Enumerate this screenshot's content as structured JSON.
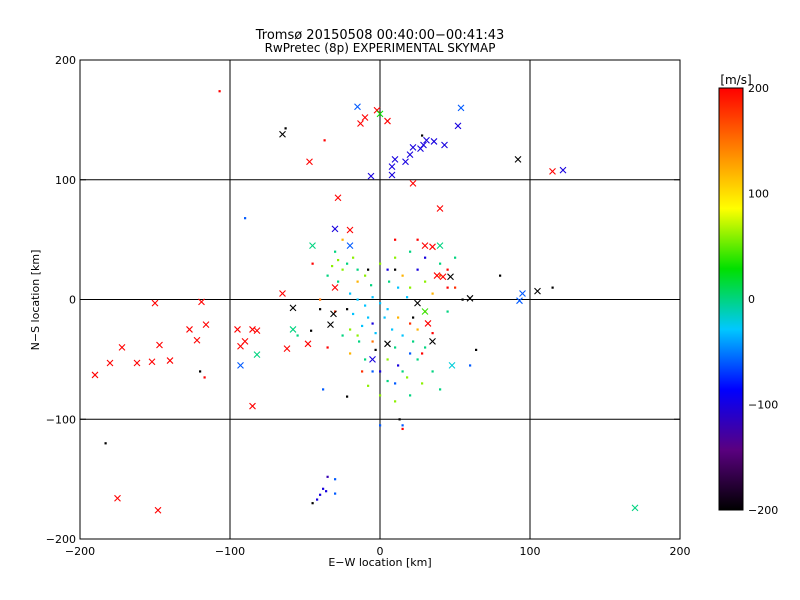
{
  "chart_data": {
    "type": "scatter",
    "title": "Tromsø 20150508 00:40:00−00:41:43",
    "subtitle": "RwPretec (8p) EXPERIMENTAL SKYMAP",
    "xlabel": "E−W location [km]",
    "ylabel": "N−S location [km]",
    "xlim": [
      -200,
      200
    ],
    "ylim": [
      -200,
      200
    ],
    "xticks": [
      -200,
      -100,
      0,
      100,
      200
    ],
    "yticks": [
      -200,
      -100,
      0,
      100,
      200
    ],
    "xticklabels": [
      "−200",
      "−100",
      "0",
      "100",
      "200"
    ],
    "yticklabels": [
      "−200",
      "−100",
      "0",
      "100",
      "200"
    ],
    "grid": true,
    "colorbar": {
      "label": "[m/s]",
      "range": [
        -200,
        200
      ],
      "ticks": [
        200,
        100,
        0,
        -100,
        -200
      ],
      "ticklabels": [
        "200",
        "100",
        "0",
        "−100",
        "−200"
      ],
      "stops": [
        "#000000",
        "#5a0080",
        "#0000ff",
        "#00c8ff",
        "#00e000",
        "#ffff00",
        "#ff8000",
        "#ff0000"
      ]
    },
    "points_x_marker": [
      {
        "x": -190,
        "y": -63,
        "v": 200
      },
      {
        "x": -180,
        "y": -53,
        "v": 200
      },
      {
        "x": -172,
        "y": -40,
        "v": 200
      },
      {
        "x": -162,
        "y": -53,
        "v": 200
      },
      {
        "x": -150,
        "y": -3,
        "v": 200
      },
      {
        "x": -152,
        "y": -52,
        "v": 200
      },
      {
        "x": -147,
        "y": -38,
        "v": 200
      },
      {
        "x": -140,
        "y": -51,
        "v": 200
      },
      {
        "x": -127,
        "y": -25,
        "v": 200
      },
      {
        "x": -122,
        "y": -34,
        "v": 200
      },
      {
        "x": -119,
        "y": -2,
        "v": 200
      },
      {
        "x": -116,
        "y": -21,
        "v": 200
      },
      {
        "x": -95,
        "y": -25,
        "v": 200
      },
      {
        "x": -93,
        "y": -39,
        "v": 200
      },
      {
        "x": -90,
        "y": -35,
        "v": 200
      },
      {
        "x": -85,
        "y": -25,
        "v": 200
      },
      {
        "x": -82,
        "y": -26,
        "v": 200
      },
      {
        "x": -85,
        "y": -89,
        "v": 200
      },
      {
        "x": -175,
        "y": -166,
        "v": 200
      },
      {
        "x": -148,
        "y": -176,
        "v": 200
      },
      {
        "x": -65,
        "y": 5,
        "v": 200
      },
      {
        "x": -62,
        "y": -41,
        "v": 200
      },
      {
        "x": -47,
        "y": 115,
        "v": 200
      },
      {
        "x": -28,
        "y": 85,
        "v": 200
      },
      {
        "x": -13,
        "y": 147,
        "v": 200
      },
      {
        "x": -10,
        "y": 152,
        "v": 200
      },
      {
        "x": -2,
        "y": 158,
        "v": 200
      },
      {
        "x": 5,
        "y": 149,
        "v": 200
      },
      {
        "x": 22,
        "y": 97,
        "v": 200
      },
      {
        "x": 40,
        "y": 76,
        "v": 200
      },
      {
        "x": 30,
        "y": 45,
        "v": 200
      },
      {
        "x": 35,
        "y": 44,
        "v": 200
      },
      {
        "x": 38,
        "y": 20,
        "v": 200
      },
      {
        "x": 42,
        "y": 19,
        "v": 200
      },
      {
        "x": 115,
        "y": 107,
        "v": 200
      },
      {
        "x": -20,
        "y": 58,
        "v": 200
      },
      {
        "x": -30,
        "y": 10,
        "v": 200
      },
      {
        "x": -48,
        "y": -37,
        "v": 200
      },
      {
        "x": 32,
        "y": -20,
        "v": 200
      },
      {
        "x": -65,
        "y": 138,
        "v": -200
      },
      {
        "x": 92,
        "y": 117,
        "v": -200
      },
      {
        "x": 105,
        "y": 7,
        "v": -200
      },
      {
        "x": 60,
        "y": 1,
        "v": -200
      },
      {
        "x": 47,
        "y": 19,
        "v": -200
      },
      {
        "x": -58,
        "y": -7,
        "v": -200
      },
      {
        "x": -33,
        "y": -21,
        "v": -200
      },
      {
        "x": -31,
        "y": -12,
        "v": -200
      },
      {
        "x": 5,
        "y": -37,
        "v": -200
      },
      {
        "x": 25,
        "y": -3,
        "v": -200
      },
      {
        "x": 35,
        "y": -35,
        "v": -200
      },
      {
        "x": -30,
        "y": 59,
        "v": -100
      },
      {
        "x": -6,
        "y": 103,
        "v": -100
      },
      {
        "x": 8,
        "y": 111,
        "v": -100
      },
      {
        "x": 10,
        "y": 117,
        "v": -100
      },
      {
        "x": 17,
        "y": 115,
        "v": -100
      },
      {
        "x": 20,
        "y": 121,
        "v": -100
      },
      {
        "x": 22,
        "y": 127,
        "v": -100
      },
      {
        "x": 27,
        "y": 126,
        "v": -100
      },
      {
        "x": 29,
        "y": 129,
        "v": -100
      },
      {
        "x": 31,
        "y": 133,
        "v": -100
      },
      {
        "x": 36,
        "y": 132,
        "v": -100
      },
      {
        "x": 43,
        "y": 129,
        "v": -100
      },
      {
        "x": 52,
        "y": 145,
        "v": -100
      },
      {
        "x": 122,
        "y": 108,
        "v": -100
      },
      {
        "x": 8,
        "y": 104,
        "v": -100
      },
      {
        "x": -5,
        "y": -50,
        "v": -100
      },
      {
        "x": -15,
        "y": 161,
        "v": -60
      },
      {
        "x": 54,
        "y": 160,
        "v": -60
      },
      {
        "x": -20,
        "y": 45,
        "v": -60
      },
      {
        "x": -93,
        "y": -55,
        "v": -60
      },
      {
        "x": 95,
        "y": 5,
        "v": -60
      },
      {
        "x": 93,
        "y": -1,
        "v": -60
      },
      {
        "x": 0,
        "y": 155,
        "v": 30
      },
      {
        "x": -58,
        "y": -25,
        "v": 0
      },
      {
        "x": -45,
        "y": 45,
        "v": 0
      },
      {
        "x": -82,
        "y": -46,
        "v": 0
      },
      {
        "x": 40,
        "y": 45,
        "v": 0
      },
      {
        "x": 170,
        "y": -174,
        "v": 0
      },
      {
        "x": 30,
        "y": -10,
        "v": 40
      },
      {
        "x": 48,
        "y": -55,
        "v": -20
      }
    ],
    "points_dot_marker": [
      {
        "x": -107,
        "y": 174,
        "v": 200
      },
      {
        "x": -117,
        "y": -65,
        "v": 200
      },
      {
        "x": -37,
        "y": 133,
        "v": 200
      },
      {
        "x": 15,
        "y": -108,
        "v": 200
      },
      {
        "x": 25,
        "y": 50,
        "v": 200
      },
      {
        "x": 45,
        "y": 10,
        "v": 200
      },
      {
        "x": -183,
        "y": -120,
        "v": -200
      },
      {
        "x": -120,
        "y": -60,
        "v": -200
      },
      {
        "x": -63,
        "y": 143,
        "v": -200
      },
      {
        "x": 28,
        "y": 137,
        "v": -200
      },
      {
        "x": 115,
        "y": 10,
        "v": -200
      },
      {
        "x": 80,
        "y": 20,
        "v": -200
      },
      {
        "x": 64,
        "y": -42,
        "v": -200
      },
      {
        "x": 55,
        "y": 0,
        "v": -200
      },
      {
        "x": -46,
        "y": -26,
        "v": -200
      },
      {
        "x": -40,
        "y": -8,
        "v": -200
      },
      {
        "x": -22,
        "y": -8,
        "v": -200
      },
      {
        "x": -8,
        "y": 25,
        "v": -200
      },
      {
        "x": 10,
        "y": 25,
        "v": -200
      },
      {
        "x": 22,
        "y": -15,
        "v": -200
      },
      {
        "x": -3,
        "y": -42,
        "v": -200
      },
      {
        "x": 13,
        "y": -100,
        "v": -200
      },
      {
        "x": -22,
        "y": -81,
        "v": -200
      },
      {
        "x": -35,
        "y": -148,
        "v": -120
      },
      {
        "x": -38,
        "y": -158,
        "v": -100
      },
      {
        "x": -40,
        "y": -163,
        "v": -100
      },
      {
        "x": -42,
        "y": -167,
        "v": -100
      },
      {
        "x": -36,
        "y": -160,
        "v": -100
      },
      {
        "x": -45,
        "y": -170,
        "v": -200
      },
      {
        "x": -30,
        "y": -162,
        "v": -60
      },
      {
        "x": -30,
        "y": -150,
        "v": -60
      },
      {
        "x": -90,
        "y": 68,
        "v": -60
      },
      {
        "x": 15,
        "y": -105,
        "v": -60
      },
      {
        "x": -38,
        "y": -75,
        "v": -60
      },
      {
        "x": -5,
        "y": -60,
        "v": -60
      },
      {
        "x": 10,
        "y": -70,
        "v": -60
      },
      {
        "x": 0,
        "y": -105,
        "v": -60
      },
      {
        "x": 20,
        "y": -45,
        "v": -60
      },
      {
        "x": 60,
        "y": -55,
        "v": -60
      },
      {
        "x": 5,
        "y": 25,
        "v": -100
      },
      {
        "x": 25,
        "y": 25,
        "v": -100
      },
      {
        "x": 30,
        "y": 35,
        "v": -100
      },
      {
        "x": -5,
        "y": -20,
        "v": -100
      },
      {
        "x": 0,
        "y": -60,
        "v": -100
      },
      {
        "x": 12,
        "y": -55,
        "v": -100
      },
      {
        "x": -15,
        "y": 0,
        "v": -30
      },
      {
        "x": -10,
        "y": -5,
        "v": -30
      },
      {
        "x": -5,
        "y": 2,
        "v": -30
      },
      {
        "x": 0,
        "y": -3,
        "v": -30
      },
      {
        "x": 5,
        "y": -8,
        "v": -30
      },
      {
        "x": -8,
        "y": -15,
        "v": -30
      },
      {
        "x": 3,
        "y": -15,
        "v": -30
      },
      {
        "x": -12,
        "y": -22,
        "v": -30
      },
      {
        "x": 8,
        "y": -25,
        "v": -30
      },
      {
        "x": -3,
        "y": -28,
        "v": -30
      },
      {
        "x": 15,
        "y": -30,
        "v": -30
      },
      {
        "x": -18,
        "y": -12,
        "v": -30
      },
      {
        "x": 18,
        "y": 2,
        "v": -30
      },
      {
        "x": -20,
        "y": 5,
        "v": -30
      },
      {
        "x": 12,
        "y": 10,
        "v": -30
      },
      {
        "x": -6,
        "y": 12,
        "v": 0
      },
      {
        "x": 6,
        "y": 15,
        "v": 0
      },
      {
        "x": -14,
        "y": -35,
        "v": 0
      },
      {
        "x": 10,
        "y": -40,
        "v": 0
      },
      {
        "x": -25,
        "y": -30,
        "v": 0
      },
      {
        "x": 22,
        "y": -35,
        "v": 0
      },
      {
        "x": -30,
        "y": 40,
        "v": 0
      },
      {
        "x": -22,
        "y": 30,
        "v": 0
      },
      {
        "x": -15,
        "y": 25,
        "v": 0
      },
      {
        "x": 20,
        "y": 40,
        "v": 0
      },
      {
        "x": 40,
        "y": 30,
        "v": 0
      },
      {
        "x": 50,
        "y": 35,
        "v": 0
      },
      {
        "x": 45,
        "y": -10,
        "v": 0
      },
      {
        "x": 30,
        "y": -40,
        "v": 0
      },
      {
        "x": 25,
        "y": -50,
        "v": 0
      },
      {
        "x": 15,
        "y": -60,
        "v": 0
      },
      {
        "x": 5,
        "y": -68,
        "v": 0
      },
      {
        "x": -10,
        "y": -50,
        "v": 0
      },
      {
        "x": -35,
        "y": 20,
        "v": 0
      },
      {
        "x": -28,
        "y": 15,
        "v": 0
      },
      {
        "x": -55,
        "y": -30,
        "v": 0
      },
      {
        "x": 35,
        "y": -60,
        "v": 0
      },
      {
        "x": 40,
        "y": -75,
        "v": 0
      },
      {
        "x": 20,
        "y": -80,
        "v": 0
      },
      {
        "x": -25,
        "y": 25,
        "v": 60
      },
      {
        "x": -18,
        "y": 35,
        "v": 60
      },
      {
        "x": -10,
        "y": 20,
        "v": 60
      },
      {
        "x": 0,
        "y": 30,
        "v": 60
      },
      {
        "x": 10,
        "y": 35,
        "v": 60
      },
      {
        "x": 20,
        "y": 10,
        "v": 60
      },
      {
        "x": 30,
        "y": 15,
        "v": 60
      },
      {
        "x": -32,
        "y": 28,
        "v": 60
      },
      {
        "x": -28,
        "y": 33,
        "v": 60
      },
      {
        "x": -20,
        "y": -25,
        "v": 60
      },
      {
        "x": -15,
        "y": -30,
        "v": 60
      },
      {
        "x": 5,
        "y": -50,
        "v": 60
      },
      {
        "x": 18,
        "y": -65,
        "v": 60
      },
      {
        "x": 28,
        "y": -70,
        "v": 60
      },
      {
        "x": 10,
        "y": -85,
        "v": 60
      },
      {
        "x": 0,
        "y": -80,
        "v": 60
      },
      {
        "x": -8,
        "y": -72,
        "v": 60
      },
      {
        "x": -25,
        "y": 50,
        "v": 120
      },
      {
        "x": -15,
        "y": 15,
        "v": 120
      },
      {
        "x": 15,
        "y": 20,
        "v": 120
      },
      {
        "x": 35,
        "y": 5,
        "v": 120
      },
      {
        "x": -20,
        "y": -45,
        "v": 120
      },
      {
        "x": 25,
        "y": -25,
        "v": 120
      },
      {
        "x": 12,
        "y": -15,
        "v": 120
      },
      {
        "x": -5,
        "y": -35,
        "v": 150
      },
      {
        "x": 30,
        "y": -10,
        "v": 150
      },
      {
        "x": -40,
        "y": 0,
        "v": 150
      },
      {
        "x": 40,
        "y": 20,
        "v": 150
      },
      {
        "x": -30,
        "y": -10,
        "v": 180
      },
      {
        "x": 50,
        "y": 10,
        "v": 180
      },
      {
        "x": 20,
        "y": -20,
        "v": 180
      },
      {
        "x": -12,
        "y": -60,
        "v": 180
      },
      {
        "x": 35,
        "y": -28,
        "v": 200
      },
      {
        "x": -45,
        "y": 30,
        "v": 200
      },
      {
        "x": 45,
        "y": 25,
        "v": 200
      },
      {
        "x": 10,
        "y": 50,
        "v": 200
      },
      {
        "x": -35,
        "y": -40,
        "v": 200
      },
      {
        "x": 28,
        "y": -45,
        "v": 200
      }
    ]
  }
}
